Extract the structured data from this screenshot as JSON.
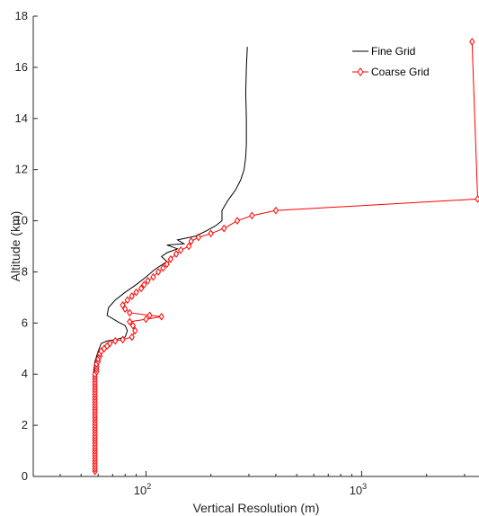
{
  "chart_data": {
    "type": "line",
    "xlabel": "Vertical Resolution (m)",
    "ylabel": "Altitude (km)",
    "xscale": "log",
    "xlim": [
      30,
      3500
    ],
    "ylim": [
      0,
      18
    ],
    "x_tick_labels": [
      {
        "value": 100,
        "base": "10",
        "exp": "2"
      },
      {
        "value": 1000,
        "base": "10",
        "exp": "3"
      }
    ],
    "y_ticks": [
      0,
      2,
      4,
      6,
      8,
      10,
      12,
      14,
      16,
      18
    ],
    "grid": false,
    "legend_position": "top-right",
    "series": [
      {
        "name": "Fine Grid",
        "color": "#000000",
        "marker": "none",
        "points": [
          [
            57,
            0.2
          ],
          [
            57,
            1.0
          ],
          [
            57,
            2.0
          ],
          [
            57,
            3.0
          ],
          [
            57,
            3.5
          ],
          [
            57,
            4.0
          ],
          [
            58,
            4.5
          ],
          [
            60,
            4.9
          ],
          [
            62,
            5.2
          ],
          [
            66,
            5.3
          ],
          [
            72,
            5.35
          ],
          [
            80,
            5.45
          ],
          [
            82,
            5.7
          ],
          [
            80,
            5.9
          ],
          [
            74,
            6.05
          ],
          [
            66,
            6.3
          ],
          [
            67,
            6.6
          ],
          [
            72,
            6.9
          ],
          [
            80,
            7.2
          ],
          [
            90,
            7.5
          ],
          [
            100,
            7.8
          ],
          [
            110,
            8.1
          ],
          [
            125,
            8.4
          ],
          [
            118,
            8.6
          ],
          [
            125,
            8.75
          ],
          [
            140,
            8.9
          ],
          [
            125,
            9.05
          ],
          [
            150,
            9.1
          ],
          [
            140,
            9.25
          ],
          [
            170,
            9.4
          ],
          [
            190,
            9.6
          ],
          [
            210,
            9.8
          ],
          [
            225,
            10.0
          ],
          [
            225,
            10.4
          ],
          [
            240,
            10.8
          ],
          [
            260,
            11.2
          ],
          [
            275,
            11.6
          ],
          [
            285,
            12.0
          ],
          [
            290,
            12.5
          ],
          [
            292,
            13.0
          ],
          [
            292,
            14.0
          ],
          [
            290,
            15.0
          ],
          [
            292,
            16.0
          ],
          [
            295,
            16.8
          ]
        ]
      },
      {
        "name": "Coarse Grid",
        "color": "#ff0000",
        "marker": "diamond",
        "points": [
          [
            58,
            0.2
          ],
          [
            58,
            0.3
          ],
          [
            58,
            0.4
          ],
          [
            58,
            0.5
          ],
          [
            58,
            0.6
          ],
          [
            58,
            0.7
          ],
          [
            58,
            0.8
          ],
          [
            58,
            0.9
          ],
          [
            58,
            1.0
          ],
          [
            58,
            1.1
          ],
          [
            58,
            1.2
          ],
          [
            58,
            1.3
          ],
          [
            58,
            1.4
          ],
          [
            58,
            1.5
          ],
          [
            58,
            1.6
          ],
          [
            58,
            1.7
          ],
          [
            58,
            1.8
          ],
          [
            58,
            1.9
          ],
          [
            58,
            2.0
          ],
          [
            58,
            2.1
          ],
          [
            58,
            2.2
          ],
          [
            58,
            2.3
          ],
          [
            58,
            2.4
          ],
          [
            58,
            2.5
          ],
          [
            58,
            2.6
          ],
          [
            58,
            2.7
          ],
          [
            58,
            2.8
          ],
          [
            58,
            2.9
          ],
          [
            58,
            3.0
          ],
          [
            58,
            3.1
          ],
          [
            58,
            3.2
          ],
          [
            58,
            3.3
          ],
          [
            58,
            3.4
          ],
          [
            58,
            3.5
          ],
          [
            58,
            3.6
          ],
          [
            58,
            3.7
          ],
          [
            58,
            3.8
          ],
          [
            58,
            3.9
          ],
          [
            58,
            4.0
          ],
          [
            59,
            4.1
          ],
          [
            59,
            4.2
          ],
          [
            59,
            4.3
          ],
          [
            59,
            4.4
          ],
          [
            60,
            4.5
          ],
          [
            60,
            4.6
          ],
          [
            61,
            4.7
          ],
          [
            61,
            4.8
          ],
          [
            62,
            4.9
          ],
          [
            64,
            5.0
          ],
          [
            66,
            5.1
          ],
          [
            68,
            5.2
          ],
          [
            72,
            5.3
          ],
          [
            78,
            5.35
          ],
          [
            86,
            5.45
          ],
          [
            89,
            5.7
          ],
          [
            87,
            5.9
          ],
          [
            84,
            6.05
          ],
          [
            100,
            6.15
          ],
          [
            118,
            6.25
          ],
          [
            104,
            6.3
          ],
          [
            84,
            6.4
          ],
          [
            80,
            6.55
          ],
          [
            78,
            6.7
          ],
          [
            82,
            6.9
          ],
          [
            86,
            7.05
          ],
          [
            90,
            7.2
          ],
          [
            95,
            7.35
          ],
          [
            98,
            7.5
          ],
          [
            102,
            7.65
          ],
          [
            108,
            7.8
          ],
          [
            114,
            8.0
          ],
          [
            120,
            8.15
          ],
          [
            125,
            8.3
          ],
          [
            130,
            8.5
          ],
          [
            138,
            8.7
          ],
          [
            145,
            8.85
          ],
          [
            158,
            9.0
          ],
          [
            162,
            9.2
          ],
          [
            175,
            9.35
          ],
          [
            200,
            9.5
          ],
          [
            230,
            9.7
          ],
          [
            265,
            10.0
          ],
          [
            310,
            10.2
          ],
          [
            400,
            10.4
          ],
          [
            3450,
            10.85
          ],
          [
            3250,
            17.0
          ]
        ]
      }
    ]
  }
}
